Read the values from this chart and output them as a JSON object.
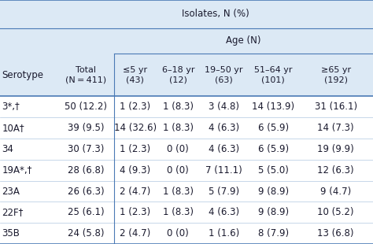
{
  "header_top": "Isolates, N (%)",
  "header_mid": "Age (N)",
  "col_headers": [
    "Serotype",
    "Total\n(N = 411)",
    "≤5 yr\n(43)",
    "6–18 yr\n(12)",
    "19–50 yr\n(63)",
    "51–64 yr\n(101)",
    "≥65 yr\n(192)"
  ],
  "rows": [
    [
      "3*,†",
      "50 (12.2)",
      "1 (2.3)",
      "1 (8.3)",
      "3 (4.8)",
      "14 (13.9)",
      "31 (16.1)"
    ],
    [
      "10A†",
      "39 (9.5)",
      "14 (32.6)",
      "1 (8.3)",
      "4 (6.3)",
      "6 (5.9)",
      "14 (7.3)"
    ],
    [
      "34",
      "30 (7.3)",
      "1 (2.3)",
      "0 (0)",
      "4 (6.3)",
      "6 (5.9)",
      "19 (9.9)"
    ],
    [
      "19A*,†",
      "28 (6.8)",
      "4 (9.3)",
      "0 (0)",
      "7 (11.1)",
      "5 (5.0)",
      "12 (6.3)"
    ],
    [
      "23A",
      "26 (6.3)",
      "2 (4.7)",
      "1 (8.3)",
      "5 (7.9)",
      "9 (8.9)",
      "9 (4.7)"
    ],
    [
      "22F†",
      "25 (6.1)",
      "1 (2.3)",
      "1 (8.3)",
      "4 (6.3)",
      "9 (8.9)",
      "10 (5.2)"
    ],
    [
      "35B",
      "24 (5.8)",
      "2 (4.7)",
      "0 (0)",
      "1 (1.6)",
      "8 (7.9)",
      "13 (6.8)"
    ]
  ],
  "header_bg": "#dce9f5",
  "row_bg_even": "#ffffff",
  "row_bg_odd": "#ffffff",
  "text_color": "#1a1a2e",
  "border_color": "#4a7ab5",
  "font_size": 8.5,
  "header_font_size": 8.5
}
